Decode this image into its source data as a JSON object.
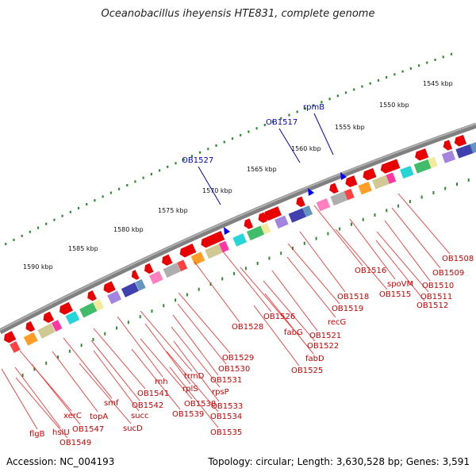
{
  "title": "Oceanobacillus iheyensis HTE831, complete genome",
  "footer": {
    "accession": "Accession: NC_004193",
    "topology": "Topology: circular; Length: 3,630,528 bp; Genes: 3,591"
  },
  "colors": {
    "gene_arrow": "#e80000",
    "label_red": "#cc0000",
    "label_blue": "#0000cc",
    "tick": "#2e8b2e"
  },
  "kbp_labels": [
    {
      "text": "1545 kbp"
    },
    {
      "text": "1550 kbp"
    },
    {
      "text": "1555 kbp"
    },
    {
      "text": "1560 kbp"
    },
    {
      "text": "1565 kbp"
    },
    {
      "text": "1570 kbp"
    },
    {
      "text": "1575 kbp"
    },
    {
      "text": "1580 kbp"
    },
    {
      "text": "1585 kbp"
    },
    {
      "text": "1590 kbp"
    }
  ],
  "blue_labels": [
    {
      "text": "rpmB"
    },
    {
      "text": "OB1517"
    },
    {
      "text": "OB1527"
    }
  ],
  "gene_labels": [
    {
      "text": "OB1508"
    },
    {
      "text": "OB1509"
    },
    {
      "text": "OB1510"
    },
    {
      "text": "OB1511"
    },
    {
      "text": "OB1512"
    },
    {
      "text": "spoVM"
    },
    {
      "text": "OB1515"
    },
    {
      "text": "OB1516"
    },
    {
      "text": "OB1518"
    },
    {
      "text": "OB1519"
    },
    {
      "text": "recG"
    },
    {
      "text": "OB1521"
    },
    {
      "text": "OB1522"
    },
    {
      "text": "fabD"
    },
    {
      "text": "OB1525"
    },
    {
      "text": "fabG"
    },
    {
      "text": "OB1526"
    },
    {
      "text": "OB1528"
    },
    {
      "text": "OB1529"
    },
    {
      "text": "OB1530"
    },
    {
      "text": "OB1531"
    },
    {
      "text": "trmD"
    },
    {
      "text": "rpsP"
    },
    {
      "text": "OB1533"
    },
    {
      "text": "OB1534"
    },
    {
      "text": "OB1535"
    },
    {
      "text": "rplS"
    },
    {
      "text": "OB1538"
    },
    {
      "text": "OB1539"
    },
    {
      "text": "rnh"
    },
    {
      "text": "OB1541"
    },
    {
      "text": "OB1542"
    },
    {
      "text": "succ"
    },
    {
      "text": "sucD"
    },
    {
      "text": "smf"
    },
    {
      "text": "topA"
    },
    {
      "text": "xerC"
    },
    {
      "text": "OB1547"
    },
    {
      "text": "hslU"
    },
    {
      "text": "OB1549"
    },
    {
      "text": "flgB"
    }
  ]
}
